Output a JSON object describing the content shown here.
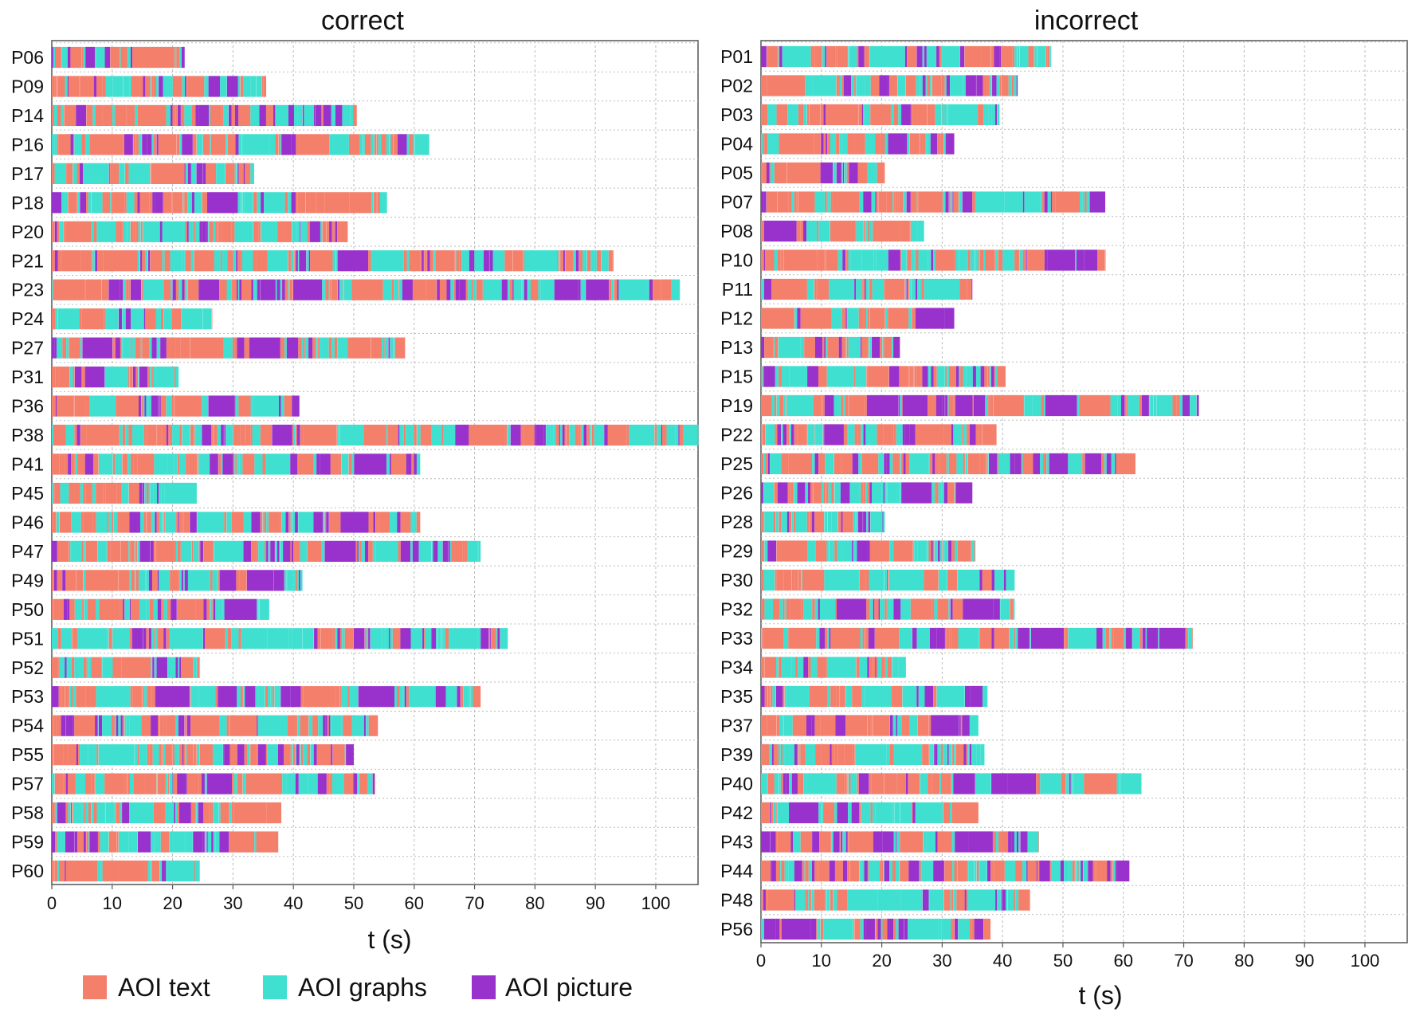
{
  "colors": {
    "text": "#F47F6B",
    "graphs": "#40E0D0",
    "picture": "#9932CC"
  },
  "legend": [
    {
      "key": "text",
      "label": "AOI text"
    },
    {
      "key": "graphs",
      "label": "AOI graphs"
    },
    {
      "key": "picture",
      "label": "AOI picture"
    }
  ],
  "chart_data": [
    {
      "type": "bar",
      "orientation": "horizontal-timeline",
      "title": "correct",
      "xlabel": "t (s)",
      "xlim": [
        0,
        107
      ],
      "xticks": [
        0,
        10,
        20,
        30,
        40,
        50,
        60,
        70,
        80,
        90,
        100
      ],
      "grid": true,
      "participants": [
        {
          "id": "P06",
          "duration": 22
        },
        {
          "id": "P09",
          "duration": 35.5
        },
        {
          "id": "P14",
          "duration": 50.5
        },
        {
          "id": "P16",
          "duration": 62.5
        },
        {
          "id": "P17",
          "duration": 33.5
        },
        {
          "id": "P18",
          "duration": 55.5
        },
        {
          "id": "P20",
          "duration": 49
        },
        {
          "id": "P21",
          "duration": 93
        },
        {
          "id": "P23",
          "duration": 104
        },
        {
          "id": "P24",
          "duration": 26.5
        },
        {
          "id": "P27",
          "duration": 58.5
        },
        {
          "id": "P31",
          "duration": 21
        },
        {
          "id": "P36",
          "duration": 41
        },
        {
          "id": "P38",
          "duration": 107
        },
        {
          "id": "P41",
          "duration": 61
        },
        {
          "id": "P45",
          "duration": 24
        },
        {
          "id": "P46",
          "duration": 61
        },
        {
          "id": "P47",
          "duration": 71
        },
        {
          "id": "P49",
          "duration": 41.5
        },
        {
          "id": "P50",
          "duration": 36
        },
        {
          "id": "P51",
          "duration": 75.5
        },
        {
          "id": "P52",
          "duration": 24.5
        },
        {
          "id": "P53",
          "duration": 71
        },
        {
          "id": "P54",
          "duration": 54
        },
        {
          "id": "P55",
          "duration": 50
        },
        {
          "id": "P57",
          "duration": 53.5
        },
        {
          "id": "P58",
          "duration": 38
        },
        {
          "id": "P59",
          "duration": 37.5
        },
        {
          "id": "P60",
          "duration": 24.5
        }
      ]
    },
    {
      "type": "bar",
      "orientation": "horizontal-timeline",
      "title": "incorrect",
      "xlabel": "t (s)",
      "xlim": [
        0,
        107
      ],
      "xticks": [
        0,
        10,
        20,
        30,
        40,
        50,
        60,
        70,
        80,
        90,
        100
      ],
      "grid": true,
      "participants": [
        {
          "id": "P01",
          "duration": 48
        },
        {
          "id": "P02",
          "duration": 42.5
        },
        {
          "id": "P03",
          "duration": 39.5
        },
        {
          "id": "P04",
          "duration": 32
        },
        {
          "id": "P05",
          "duration": 20.5
        },
        {
          "id": "P07",
          "duration": 57
        },
        {
          "id": "P08",
          "duration": 27
        },
        {
          "id": "P10",
          "duration": 57
        },
        {
          "id": "P11",
          "duration": 35
        },
        {
          "id": "P12",
          "duration": 32
        },
        {
          "id": "P13",
          "duration": 23
        },
        {
          "id": "P15",
          "duration": 40.5
        },
        {
          "id": "P19",
          "duration": 72.5
        },
        {
          "id": "P22",
          "duration": 39
        },
        {
          "id": "P25",
          "duration": 62
        },
        {
          "id": "P26",
          "duration": 35
        },
        {
          "id": "P28",
          "duration": 20.5
        },
        {
          "id": "P29",
          "duration": 35.5
        },
        {
          "id": "P30",
          "duration": 42
        },
        {
          "id": "P32",
          "duration": 42
        },
        {
          "id": "P33",
          "duration": 71.5
        },
        {
          "id": "P34",
          "duration": 24
        },
        {
          "id": "P35",
          "duration": 37.5
        },
        {
          "id": "P37",
          "duration": 36
        },
        {
          "id": "P39",
          "duration": 37
        },
        {
          "id": "P40",
          "duration": 63
        },
        {
          "id": "P42",
          "duration": 36
        },
        {
          "id": "P43",
          "duration": 46
        },
        {
          "id": "P44",
          "duration": 61
        },
        {
          "id": "P48",
          "duration": 44.5
        },
        {
          "id": "P56",
          "duration": 38
        }
      ]
    }
  ]
}
